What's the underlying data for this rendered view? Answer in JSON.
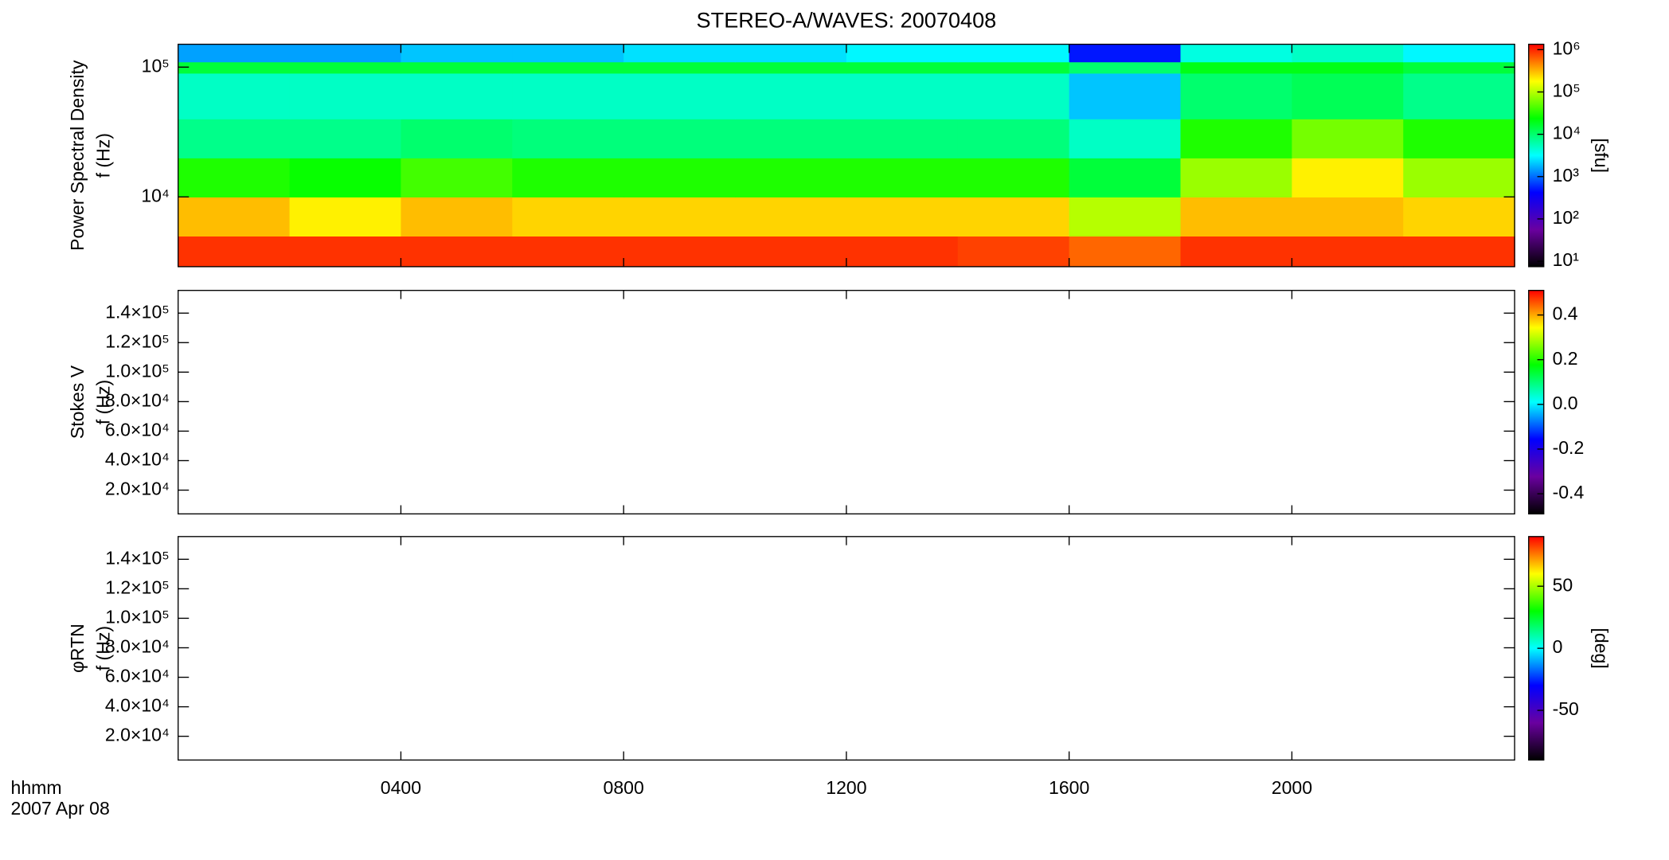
{
  "chart_data": [
    {
      "type": "spectrogram",
      "title": "STEREO-A/WAVES: 20070408",
      "ylabel": [
        "Power Spectral Density",
        "f (Hz)"
      ],
      "ylog": true,
      "ylim": [
        2900,
        150000
      ],
      "yticks": [
        {
          "value": 10000,
          "label": "10⁴"
        },
        {
          "value": 100000,
          "label": "10⁵"
        }
      ],
      "xlim": [
        0,
        24
      ],
      "time_bins": [
        0,
        2,
        4,
        6,
        8,
        10,
        12,
        14,
        16,
        18,
        20,
        22,
        24
      ],
      "freq_bins": [
        2900,
        5000,
        10000,
        20000,
        40000,
        90000,
        110000,
        150000
      ],
      "values": [
        [
          900000,
          900000,
          900000,
          900000,
          900000,
          900000,
          900000,
          800000,
          600000,
          900000,
          900000,
          900000
        ],
        [
          300000,
          200000,
          300000,
          250000,
          250000,
          250000,
          250000,
          250000,
          100000,
          300000,
          300000,
          250000
        ],
        [
          30000,
          25000,
          40000,
          30000,
          30000,
          30000,
          30000,
          30000,
          15000,
          80000,
          200000,
          80000
        ],
        [
          8000,
          8000,
          10000,
          9000,
          9000,
          9000,
          9000,
          9000,
          5000,
          30000,
          60000,
          30000
        ],
        [
          5000,
          5000,
          5000,
          5000,
          5000,
          5000,
          5000,
          5000,
          2000,
          10000,
          12000,
          8000
        ],
        [
          15000,
          15000,
          15000,
          15000,
          15000,
          15000,
          15000,
          15000,
          10000,
          20000,
          20000,
          15000
        ],
        [
          1500,
          1500,
          2000,
          2000,
          2500,
          2500,
          3000,
          3000,
          500,
          4000,
          5000,
          3000
        ]
      ],
      "colorscale": [
        "#000000",
        "#6a00a0",
        "#0000ff",
        "#00ffff",
        "#00ff00",
        "#ffff00",
        "#ff0000"
      ],
      "colorbar": {
        "label": "[sfu]",
        "log": true,
        "lim": [
          7.45,
          1340000
        ],
        "ticks": [
          {
            "value": 10,
            "label": "10¹"
          },
          {
            "value": 100,
            "label": "10²"
          },
          {
            "value": 1000,
            "label": "10³"
          },
          {
            "value": 10000,
            "label": "10⁴"
          },
          {
            "value": 100000,
            "label": "10⁵"
          },
          {
            "value": 1000000,
            "label": "10⁶"
          }
        ]
      }
    },
    {
      "type": "spectrogram",
      "ylabel": [
        "Stokes V",
        "f (Hz)"
      ],
      "ylog": false,
      "ylim": [
        3900,
        155400
      ],
      "yticks": [
        {
          "value": 20000,
          "label": "2.0×10⁴"
        },
        {
          "value": 40000,
          "label": "4.0×10⁴"
        },
        {
          "value": 60000,
          "label": "6.0×10⁴"
        },
        {
          "value": 80000,
          "label": "8.0×10⁴"
        },
        {
          "value": 100000,
          "label": "1.0×10⁵"
        },
        {
          "value": 120000,
          "label": "1.2×10⁵"
        },
        {
          "value": 140000,
          "label": "1.4×10⁵"
        }
      ],
      "xlim": [
        0,
        24
      ],
      "colorbar": {
        "log": false,
        "lim": [
          -0.49,
          0.51
        ],
        "ticks": [
          -0.4,
          -0.2,
          {
            "value": 0,
            "label": "0.0"
          },
          0.2,
          0.4
        ]
      }
    },
    {
      "type": "spectrogram",
      "ylabel": [
        "φRTN",
        "f (Hz)"
      ],
      "ylog": false,
      "ylim": [
        3900,
        155400
      ],
      "yticks": [
        {
          "value": 20000,
          "label": "2.0×10⁴"
        },
        {
          "value": 40000,
          "label": "4.0×10⁴"
        },
        {
          "value": 60000,
          "label": "6.0×10⁴"
        },
        {
          "value": 80000,
          "label": "8.0×10⁴"
        },
        {
          "value": 100000,
          "label": "1.0×10⁵"
        },
        {
          "value": 120000,
          "label": "1.2×10⁵"
        },
        {
          "value": 140000,
          "label": "1.4×10⁵"
        }
      ],
      "xlim": [
        0,
        24
      ],
      "xticks": [
        {
          "value": 4,
          "label": "0400"
        },
        {
          "value": 8,
          "label": "0800"
        },
        {
          "value": 12,
          "label": "1200"
        },
        {
          "value": 16,
          "label": "1600"
        },
        {
          "value": 20,
          "label": "2000"
        }
      ],
      "xlabel": "hhmm",
      "date": "2007 Apr 08",
      "colorbar": {
        "label": "[deg]",
        "log": false,
        "lim": [
          -90,
          90
        ],
        "ticks": [
          -50,
          0,
          50
        ]
      }
    }
  ]
}
